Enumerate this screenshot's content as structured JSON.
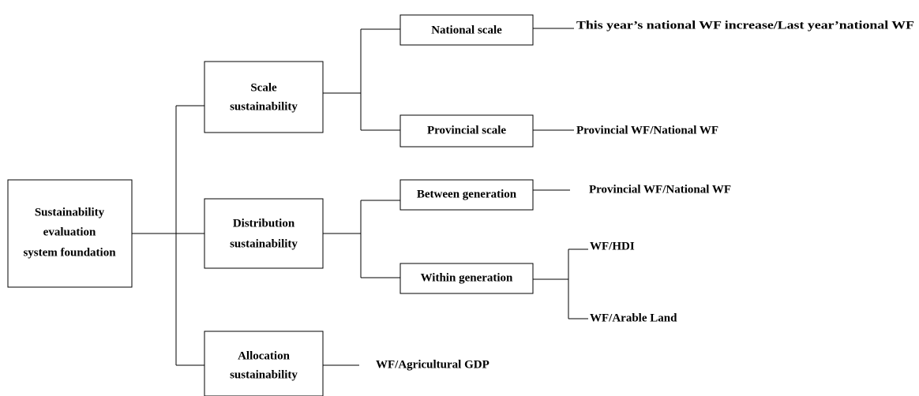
{
  "nodes": [
    {
      "lines": [
        "Sustainability",
        "evaluation",
        "system foundation"
      ]
    },
    {
      "lines": [
        "Scale",
        "sustainability"
      ]
    },
    {
      "lines": [
        "Distribution",
        "sustainability"
      ]
    },
    {
      "lines": [
        "Allocation",
        "sustainability"
      ]
    },
    {
      "lines": [
        "National scale"
      ]
    },
    {
      "lines": [
        "Provincial scale"
      ]
    },
    {
      "lines": [
        "Between generation"
      ]
    },
    {
      "lines": [
        "Within generation"
      ]
    }
  ],
  "indicators": [
    "This year’s national WF increase/Last year’national WF",
    "Provincial WF/National WF",
    "Provincial WF/National WF",
    "WF/HDI",
    "WF/Arable Land",
    "WF/Agricultural GDP"
  ]
}
